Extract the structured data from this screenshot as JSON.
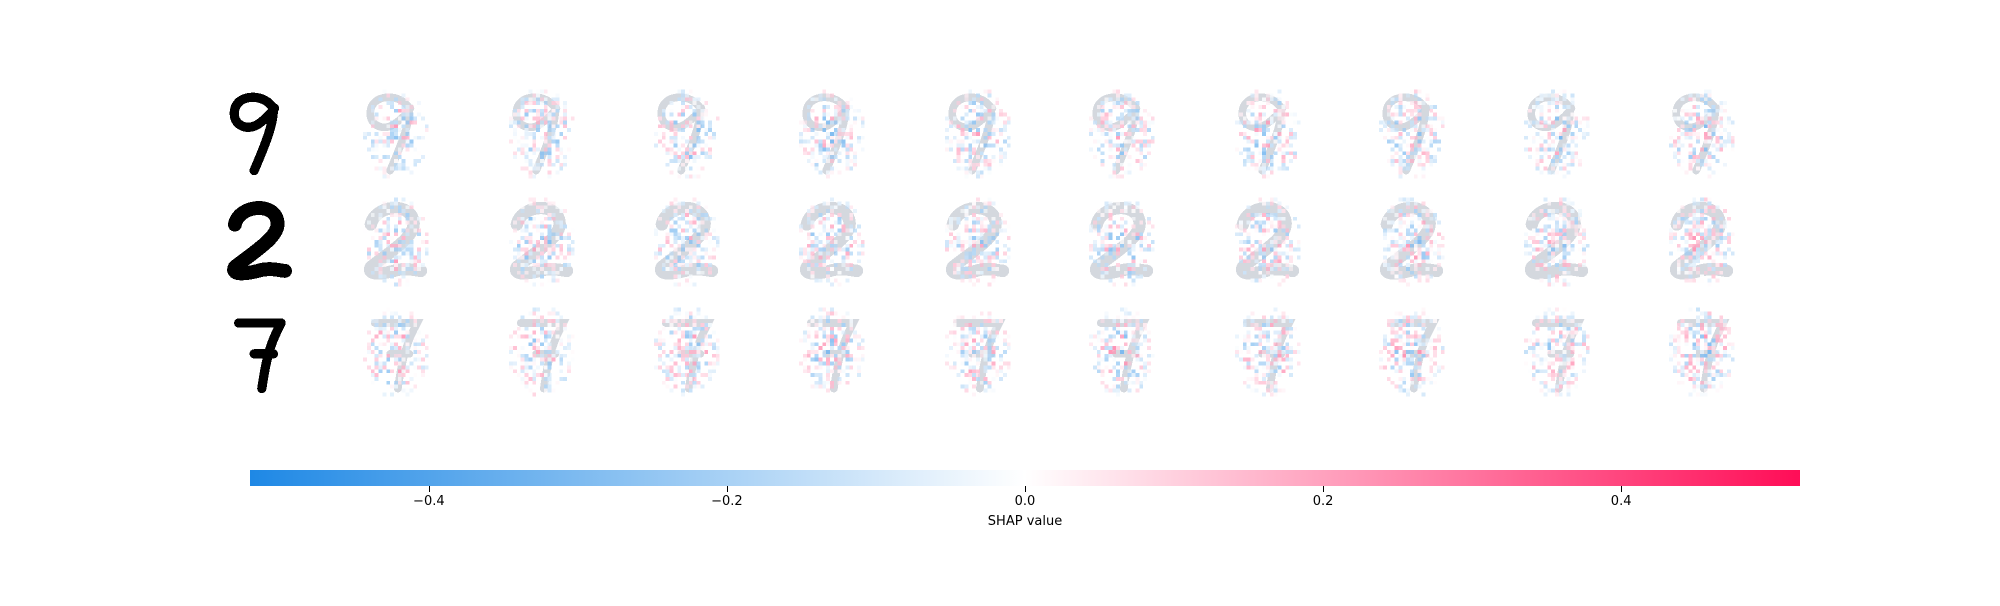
{
  "chart_data": {
    "type": "heatmap",
    "description_free": true,
    "rows": [
      {
        "input_digit": "9",
        "shap_panels": 10
      },
      {
        "input_digit": "2",
        "shap_panels": 10
      },
      {
        "input_digit": "7",
        "shap_panels": 10
      }
    ],
    "colorbar": {
      "label": "SHAP value",
      "range": [
        -0.52,
        0.52
      ],
      "ticks": [
        -0.4,
        -0.2,
        0.0,
        0.2,
        0.4
      ],
      "tick_labels": [
        "−0.4",
        "−0.2",
        "0.0",
        "0.2",
        "0.4"
      ],
      "negative_color": "#1E88E5",
      "positive_color": "#FF0D57",
      "mid_color": "#ffffff"
    }
  }
}
